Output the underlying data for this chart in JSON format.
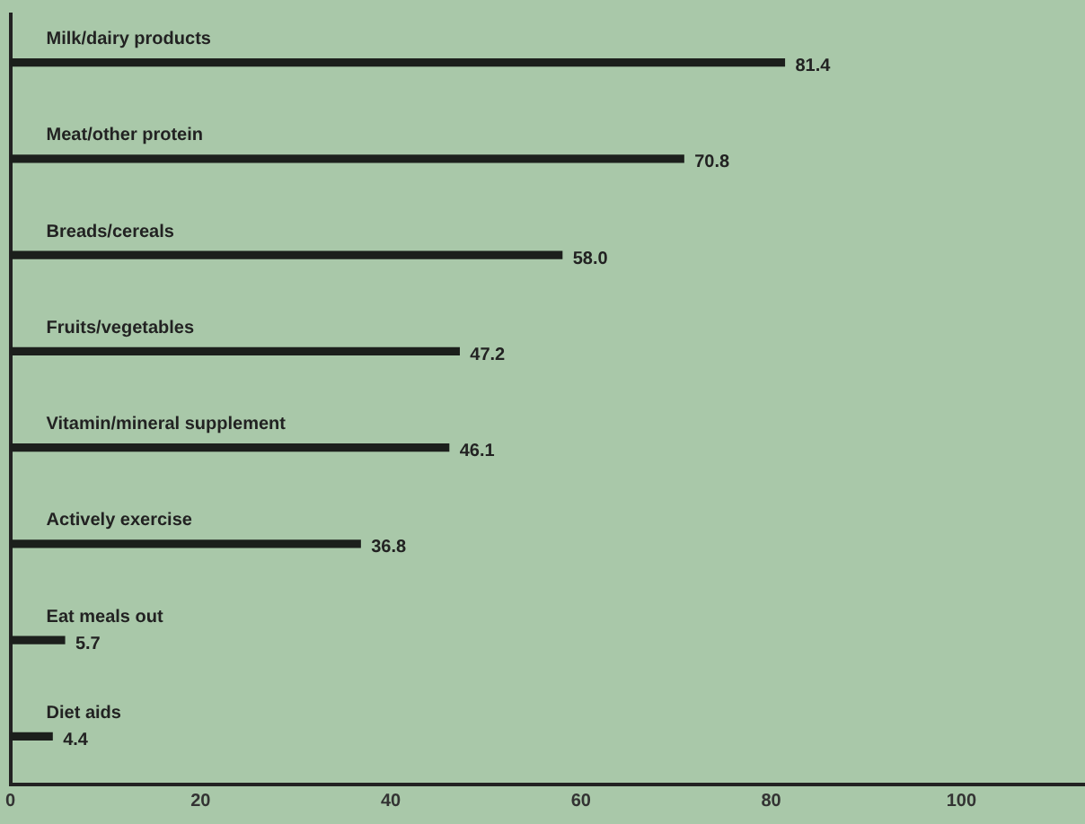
{
  "chart_data": {
    "type": "bar",
    "orientation": "horizontal",
    "categories": [
      "Milk/dairy products",
      "Meat/other protein",
      "Breads/cereals",
      "Fruits/vegetables",
      "Vitamin/mineral supplement",
      "Actively exercise",
      "Eat meals out",
      "Diet aids"
    ],
    "values": [
      81.4,
      70.8,
      58.0,
      47.2,
      46.1,
      36.8,
      5.7,
      4.4
    ],
    "value_labels": [
      "81.4",
      "70.8",
      "58.0",
      "47.2",
      "46.1",
      "36.8",
      "5.7",
      "4.4"
    ],
    "color": "#1c1f1c",
    "xlim": [
      0,
      113
    ],
    "xticks": [
      0,
      20,
      40,
      60,
      80,
      100
    ],
    "grid": false,
    "legend": false,
    "data_labels": true
  }
}
